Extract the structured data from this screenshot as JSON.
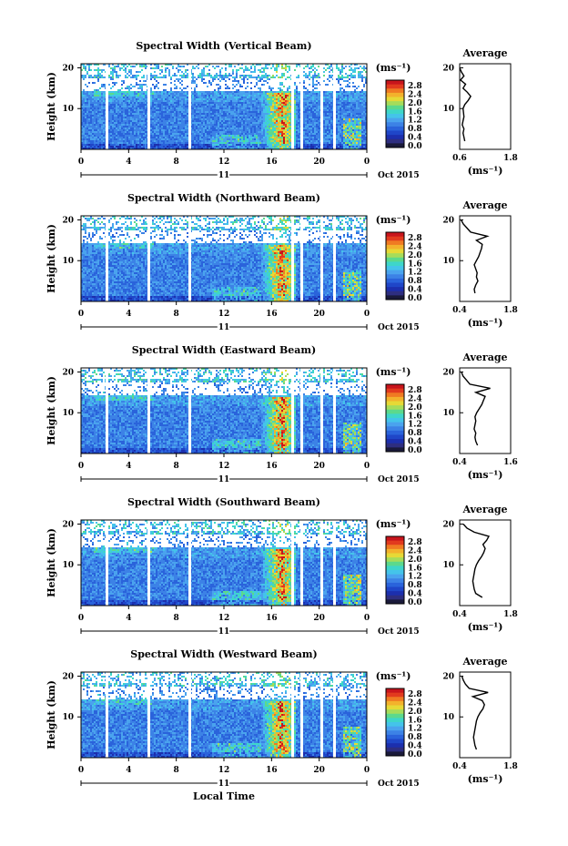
{
  "colors": {
    "scale": [
      "#2e2e80",
      "#1c2fae",
      "#1f46c8",
      "#2a63db",
      "#3c82e6",
      "#4aa3ee",
      "#44c4ea",
      "#3ed6c9",
      "#5cd98c",
      "#a6dc5a",
      "#e6d936",
      "#f3b22c",
      "#f07a22",
      "#e23a1e",
      "#c8151c"
    ]
  },
  "chart_data": [
    {
      "type": "heatmap",
      "title": "Spectral Width (Vertical Beam)",
      "ylabel": "Height (km)",
      "xticks": [
        "0",
        "4",
        "8",
        "12",
        "16",
        "20",
        "0"
      ],
      "yticks": [
        "20",
        "10"
      ],
      "date_day": "11",
      "date_label": "Oct 2015",
      "colorbar_unit": "(ms⁻¹)",
      "colorbar_ticks": [
        "2.8",
        "2.4",
        "2.0",
        "1.6",
        "1.2",
        "0.8",
        "0.4",
        "0.0"
      ],
      "avg_title": "Average",
      "avg_xticks": [
        "0.6",
        "1.8"
      ],
      "avg_xlabel": "(ms⁻¹)",
      "avg_yticks": [
        "20",
        "10"
      ],
      "avg_xlim": [
        0.6,
        1.8
      ],
      "avg_profile": {
        "height": [
          2,
          3,
          4,
          5,
          6,
          7,
          8,
          9,
          10,
          11,
          12,
          13,
          14,
          15,
          16,
          17,
          18,
          19,
          20
        ],
        "width": [
          0.72,
          0.7,
          0.68,
          0.7,
          0.66,
          0.68,
          0.7,
          0.69,
          0.68,
          0.72,
          0.8,
          0.86,
          0.78,
          0.68,
          0.74,
          0.62,
          0.7,
          0.64,
          0.6
        ]
      }
    },
    {
      "type": "heatmap",
      "title": "Spectral Width (Northward Beam)",
      "ylabel": "Height (km)",
      "xticks": [
        "0",
        "4",
        "8",
        "12",
        "16",
        "20",
        "0"
      ],
      "yticks": [
        "20",
        "10"
      ],
      "date_day": "11",
      "date_label": "Oct 2015",
      "colorbar_unit": "(ms⁻¹)",
      "colorbar_ticks": [
        "2.8",
        "2.4",
        "2.0",
        "1.6",
        "1.2",
        "0.8",
        "0.4",
        "0.0"
      ],
      "avg_title": "Average",
      "avg_xticks": [
        "0.4",
        "1.8"
      ],
      "avg_xlabel": "(ms⁻¹)",
      "avg_yticks": [
        "20",
        "10"
      ],
      "avg_xlim": [
        0.4,
        1.8
      ],
      "avg_profile": {
        "height": [
          2,
          3,
          4,
          5,
          6,
          7,
          8,
          9,
          10,
          11,
          12,
          13,
          14,
          15,
          16,
          17,
          18,
          19,
          20
        ],
        "width": [
          0.82,
          0.8,
          0.84,
          0.9,
          0.86,
          0.88,
          0.84,
          0.8,
          0.86,
          0.92,
          0.96,
          1.0,
          1.02,
          0.86,
          1.16,
          0.7,
          0.6,
          0.5,
          0.44
        ]
      }
    },
    {
      "type": "heatmap",
      "title": "Spectral Width (Eastward Beam)",
      "ylabel": "Height (km)",
      "xticks": [
        "0",
        "4",
        "8",
        "12",
        "16",
        "20",
        "0"
      ],
      "yticks": [
        "20",
        "10"
      ],
      "date_day": "11",
      "date_label": "Oct 2015",
      "colorbar_unit": "(ms⁻¹)",
      "colorbar_ticks": [
        "2.8",
        "2.4",
        "2.0",
        "1.6",
        "1.2",
        "0.8",
        "0.4",
        "0.0"
      ],
      "avg_title": "Average",
      "avg_xticks": [
        "0.4",
        "1.6"
      ],
      "avg_xlabel": "(ms⁻¹)",
      "avg_yticks": [
        "20",
        "10"
      ],
      "avg_xlim": [
        0.4,
        1.6
      ],
      "avg_profile": {
        "height": [
          2,
          3,
          4,
          5,
          6,
          7,
          8,
          9,
          10,
          11,
          12,
          13,
          14,
          15,
          16,
          17,
          18,
          19,
          20
        ],
        "width": [
          0.82,
          0.78,
          0.76,
          0.78,
          0.74,
          0.76,
          0.78,
          0.76,
          0.8,
          0.86,
          0.92,
          0.96,
          1.0,
          0.78,
          1.12,
          0.64,
          0.56,
          0.48,
          0.44
        ]
      }
    },
    {
      "type": "heatmap",
      "title": "Spectral Width (Southward Beam)",
      "ylabel": "Height (km)",
      "xticks": [
        "0",
        "4",
        "8",
        "12",
        "16",
        "20",
        "0"
      ],
      "yticks": [
        "20",
        "10"
      ],
      "date_day": "11",
      "date_label": "Oct 2015",
      "colorbar_unit": "(ms⁻¹)",
      "colorbar_ticks": [
        "2.8",
        "2.4",
        "2.0",
        "1.6",
        "1.2",
        "0.8",
        "0.4",
        "0.0"
      ],
      "avg_title": "Average",
      "avg_xticks": [
        "0.4",
        "1.8"
      ],
      "avg_xlabel": "(ms⁻¹)",
      "avg_yticks": [
        "20",
        "10"
      ],
      "avg_xlim": [
        0.4,
        1.8
      ],
      "avg_profile": {
        "height": [
          2,
          3,
          4,
          5,
          6,
          7,
          8,
          9,
          10,
          11,
          12,
          13,
          14,
          15,
          16,
          17,
          18,
          19,
          20
        ],
        "width": [
          1.02,
          0.84,
          0.8,
          0.78,
          0.76,
          0.78,
          0.8,
          0.82,
          0.86,
          0.92,
          1.0,
          1.06,
          1.1,
          1.04,
          1.14,
          1.2,
          0.8,
          0.6,
          0.5
        ]
      }
    },
    {
      "type": "heatmap",
      "title": "Spectral Width (Westward Beam)",
      "ylabel": "Height (km)",
      "xticks": [
        "0",
        "4",
        "8",
        "12",
        "16",
        "20",
        "0"
      ],
      "yticks": [
        "20",
        "10"
      ],
      "date_day": "11",
      "date_label": "Oct 2015",
      "colorbar_unit": "(ms⁻¹)",
      "colorbar_ticks": [
        "2.8",
        "2.4",
        "2.0",
        "1.6",
        "1.2",
        "0.8",
        "0.4",
        "0.0"
      ],
      "avg_title": "Average",
      "avg_xticks": [
        "0.4",
        "1.8"
      ],
      "avg_xlabel": "(ms⁻¹)",
      "avg_yticks": [
        "20",
        "10"
      ],
      "avg_xlim": [
        0.4,
        1.8
      ],
      "avg_profile": {
        "height": [
          2,
          3,
          4,
          5,
          6,
          7,
          8,
          9,
          10,
          11,
          12,
          13,
          14,
          15,
          16,
          17,
          18,
          19,
          20
        ],
        "width": [
          0.86,
          0.82,
          0.8,
          0.78,
          0.8,
          0.82,
          0.84,
          0.86,
          0.9,
          0.96,
          1.04,
          1.08,
          1.02,
          0.76,
          1.18,
          0.66,
          0.56,
          0.5,
          0.46
        ]
      }
    }
  ],
  "footer": {
    "xlabel": "Local Time"
  }
}
